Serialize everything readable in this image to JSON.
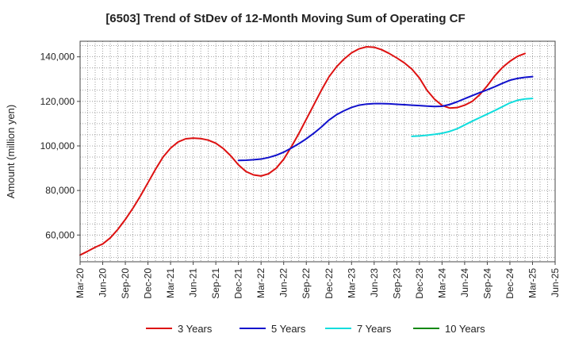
{
  "chart_data": {
    "type": "line",
    "title": "[6503]  Trend of StDev of 12-Month Moving Sum of Operating CF",
    "xlabel": "",
    "ylabel": "Amount (million yen)",
    "ylim": [
      48000,
      147000
    ],
    "yticks": [
      60000,
      80000,
      100000,
      120000,
      140000
    ],
    "ytick_labels": [
      "60,000",
      "80,000",
      "100,000",
      "120,000",
      "140,000"
    ],
    "xlim_months": [
      0,
      63
    ],
    "xtick_labels": [
      "Mar-20",
      "Jun-20",
      "Sep-20",
      "Dec-20",
      "Mar-21",
      "Jun-21",
      "Sep-21",
      "Dec-21",
      "Mar-22",
      "Jun-22",
      "Sep-22",
      "Dec-22",
      "Mar-23",
      "Jun-23",
      "Sep-23",
      "Dec-23",
      "Mar-24",
      "Jun-24",
      "Sep-24",
      "Dec-24",
      "Mar-25",
      "Jun-25"
    ],
    "x_note": "x values are month offsets from Mar-20",
    "grid": true,
    "legend_position": "bottom",
    "series": [
      {
        "name": "3 Years",
        "color": "#dd1111",
        "x": [
          0,
          1,
          2,
          3,
          4,
          5,
          6,
          7,
          8,
          9,
          10,
          11,
          12,
          13,
          14,
          15,
          16,
          17,
          18,
          19,
          20,
          21,
          22,
          23,
          24,
          25,
          26,
          27,
          28,
          29,
          30,
          31,
          32,
          33,
          34,
          35,
          36,
          37,
          38,
          39,
          40,
          41,
          42,
          43,
          44,
          45,
          46,
          47,
          48,
          49,
          50,
          51,
          52,
          53,
          54,
          55,
          56,
          57,
          58,
          59,
          60,
          61,
          62,
          63
        ],
        "values": [
          51000,
          52700,
          54500,
          56000,
          58700,
          62500,
          67000,
          72000,
          77500,
          83500,
          89500,
          95000,
          99000,
          101800,
          103200,
          103500,
          103300,
          102600,
          101200,
          98800,
          95500,
          91500,
          88500,
          87000,
          86500,
          87500,
          90000,
          94000,
          99500,
          105500,
          112000,
          118500,
          125000,
          131000,
          135500,
          139000,
          141800,
          143600,
          144500,
          144300,
          143200,
          141500,
          139500,
          137300,
          134500,
          130500,
          125000,
          121000,
          118200,
          117000,
          117200,
          118300,
          120000,
          123000,
          127000,
          131500,
          135200,
          138000,
          140200,
          141500,
          null,
          null,
          null,
          null
        ]
      },
      {
        "name": "5 Years",
        "color": "#1111cc",
        "x": [
          21,
          22,
          23,
          24,
          25,
          26,
          27,
          28,
          29,
          30,
          31,
          32,
          33,
          34,
          35,
          36,
          37,
          38,
          39,
          40,
          41,
          42,
          43,
          44,
          45,
          46,
          47,
          48,
          49,
          50,
          51,
          52,
          53,
          54,
          55,
          56,
          57,
          58,
          59,
          60
        ],
        "values": [
          93500,
          93600,
          93800,
          94100,
          94800,
          95800,
          97200,
          99000,
          101000,
          103200,
          105700,
          108500,
          111600,
          114000,
          115800,
          117300,
          118300,
          118800,
          119000,
          119000,
          118900,
          118700,
          118500,
          118300,
          118100,
          117900,
          117700,
          117800,
          118600,
          119800,
          121200,
          122600,
          123900,
          125200,
          126600,
          128100,
          129500,
          130300,
          130800,
          131100
        ]
      },
      {
        "name": "7 Years",
        "color": "#11dddd",
        "x": [
          44,
          45,
          46,
          47,
          48,
          49,
          50,
          51,
          52,
          53,
          54,
          55,
          56,
          57,
          58,
          59,
          60
        ],
        "values": [
          104300,
          104500,
          104800,
          105200,
          105700,
          106500,
          107700,
          109400,
          111100,
          112700,
          114300,
          115900,
          117600,
          119300,
          120500,
          121100,
          121300
        ]
      },
      {
        "name": "10 Years",
        "color": "#118811",
        "x": [],
        "values": []
      }
    ]
  }
}
